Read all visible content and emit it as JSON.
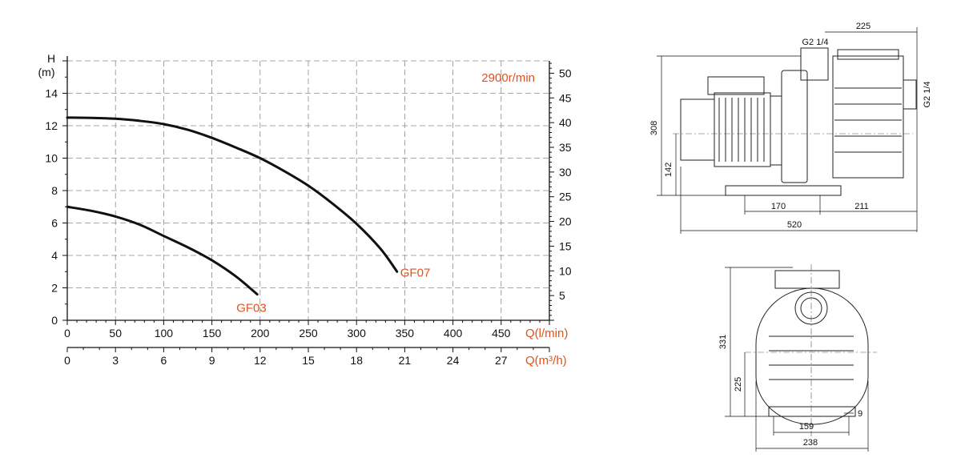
{
  "chart_data": {
    "type": "line",
    "speed_label": "2900r/min",
    "y_axis": {
      "label_line1": "H",
      "label_line2": "(m)",
      "ticks": [
        0,
        2,
        4,
        6,
        8,
        10,
        12,
        14
      ],
      "range": [
        0,
        16
      ]
    },
    "y2_axis": {
      "ticks": [
        5,
        10,
        15,
        20,
        25,
        30,
        35,
        40,
        45,
        50
      ],
      "range": [
        0,
        52.5
      ]
    },
    "x_axis": {
      "label": "Q(l/min)",
      "ticks": [
        0,
        50,
        100,
        150,
        200,
        250,
        300,
        350,
        400,
        450
      ],
      "range": [
        0,
        500
      ]
    },
    "x2_axis": {
      "label": "Q(m³/h)",
      "ticks": [
        0,
        3,
        6,
        9,
        12,
        15,
        18,
        21,
        24,
        27
      ],
      "range": [
        0,
        30
      ]
    },
    "series": [
      {
        "name": "GF07",
        "x": [
          0,
          25,
          50,
          75,
          100,
          125,
          150,
          175,
          200,
          225,
          250,
          275,
          300,
          325,
          342
        ],
        "y": [
          12.5,
          12.48,
          12.43,
          12.3,
          12.1,
          11.75,
          11.25,
          10.65,
          10.0,
          9.2,
          8.3,
          7.2,
          5.95,
          4.4,
          3.0
        ]
      },
      {
        "name": "GF03",
        "x": [
          0,
          25,
          50,
          75,
          100,
          125,
          150,
          175,
          197
        ],
        "y": [
          7.0,
          6.75,
          6.4,
          5.9,
          5.2,
          4.5,
          3.7,
          2.7,
          1.6
        ]
      }
    ]
  },
  "dimensions": {
    "side_view": [
      "225",
      "G2 1/4",
      "G2 1/4",
      "308",
      "142",
      "170",
      "211",
      "520"
    ],
    "front_view": [
      "331",
      "225",
      "159",
      "9",
      "238"
    ]
  }
}
